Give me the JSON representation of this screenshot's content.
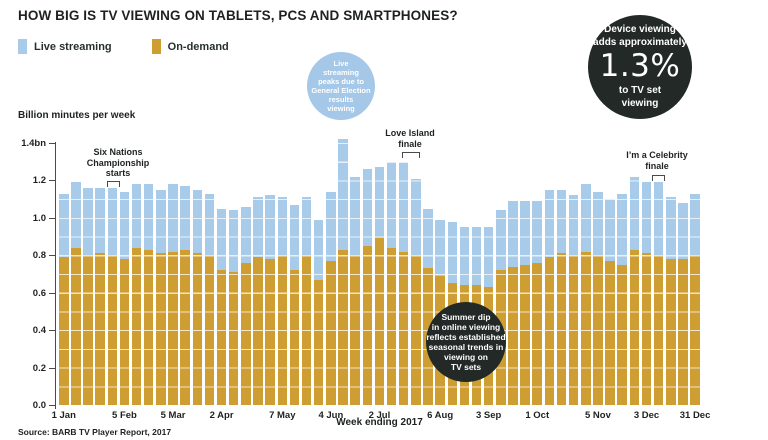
{
  "title": "HOW BIG IS TV VIEWING ON TABLETS, PCS AND SMARTPHONES?",
  "legend": {
    "items": [
      {
        "label": "Live streaming",
        "color": "#a8cbe9"
      },
      {
        "label": "On-demand",
        "color": "#cf9e33"
      }
    ]
  },
  "device_callout": {
    "bg": "#222927",
    "intro_lines": [
      "Device viewing",
      "adds approximately"
    ],
    "value": "1.3%",
    "outro_lines": [
      "to TV set",
      "viewing"
    ]
  },
  "ylabel": "Billion minutes per week",
  "footer": {
    "xlabel": "Week ending 2017",
    "source": "Source: BARB TV Player Report, 2017"
  },
  "annotations": {
    "six_nations": {
      "lines": [
        "Six Nations",
        "Championship",
        "starts"
      ]
    },
    "election": {
      "bg": "#a5c7e8",
      "lines": [
        "Live",
        "streaming",
        "peaks due to",
        "General Election",
        "results",
        "viewing"
      ]
    },
    "love_island": {
      "lines": [
        "Love Island",
        "finale"
      ]
    },
    "summer_dip": {
      "bg": "#222927",
      "lines": [
        "Summer dip",
        "in online viewing",
        "reflects established",
        "seasonal trends in",
        "viewing on",
        "TV sets"
      ]
    },
    "celebrity": {
      "lines": [
        "I’m a Celebrity",
        "finale"
      ]
    }
  },
  "chart_data": {
    "type": "bar",
    "stacked": true,
    "title": "HOW BIG IS TV VIEWING ON TABLETS, PCS AND SMARTPHONES?",
    "ylabel": "Billion minutes per week",
    "xlabel": "Week ending 2017",
    "unit": "billion minutes per week",
    "ylim": [
      0,
      1.4
    ],
    "ytick_labels": [
      "0.0",
      "0.2",
      "0.4",
      "0.6",
      "0.8",
      "1.0",
      "1.2",
      "1.4bn"
    ],
    "grid": "white lines over bars every 0.1",
    "legend_position": "top-left",
    "x_tick_bar_indices": [
      0,
      5,
      9,
      13,
      18,
      22,
      26,
      31,
      35,
      39,
      44,
      48,
      52
    ],
    "x_tick_labels": [
      "1 Jan",
      "5 Feb",
      "5 Mar",
      "2 Apr",
      "7 May",
      "4 Jun",
      "2 Jul",
      "6 Aug",
      "3 Sep",
      "1 Oct",
      "5 Nov",
      "3 Dec",
      "31 Dec"
    ],
    "series": [
      {
        "name": "On-demand",
        "color": "#cf9e33",
        "values": [
          0.79,
          0.84,
          0.8,
          0.81,
          0.8,
          0.78,
          0.84,
          0.83,
          0.81,
          0.82,
          0.83,
          0.81,
          0.8,
          0.72,
          0.71,
          0.76,
          0.79,
          0.78,
          0.8,
          0.72,
          0.8,
          0.67,
          0.77,
          0.83,
          0.8,
          0.85,
          0.89,
          0.84,
          0.82,
          0.8,
          0.73,
          0.69,
          0.65,
          0.64,
          0.64,
          0.63,
          0.72,
          0.74,
          0.75,
          0.76,
          0.79,
          0.81,
          0.8,
          0.82,
          0.8,
          0.77,
          0.75,
          0.83,
          0.81,
          0.8,
          0.78,
          0.78,
          0.8
        ]
      },
      {
        "name": "Live streaming",
        "color": "#a8cbe9",
        "values": [
          0.34,
          0.35,
          0.36,
          0.35,
          0.36,
          0.36,
          0.34,
          0.35,
          0.34,
          0.36,
          0.34,
          0.34,
          0.33,
          0.33,
          0.33,
          0.3,
          0.32,
          0.34,
          0.31,
          0.35,
          0.31,
          0.32,
          0.37,
          0.59,
          0.42,
          0.41,
          0.38,
          0.46,
          0.48,
          0.41,
          0.32,
          0.3,
          0.33,
          0.31,
          0.31,
          0.32,
          0.32,
          0.35,
          0.34,
          0.33,
          0.36,
          0.34,
          0.32,
          0.36,
          0.34,
          0.33,
          0.38,
          0.39,
          0.38,
          0.39,
          0.33,
          0.3,
          0.33
        ]
      }
    ]
  }
}
